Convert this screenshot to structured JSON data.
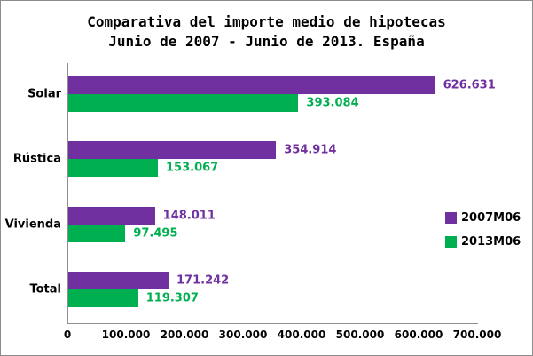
{
  "title": {
    "line1": "Comparativa del importe medio de hipotecas",
    "line2": "Junio de 2007 - Junio de 2013. España"
  },
  "chart_data": {
    "type": "bar",
    "orientation": "horizontal",
    "title": "Comparativa del importe medio de hipotecas Junio de 2007 - Junio de 2013. España",
    "categories": [
      "Solar",
      "Rústica",
      "Vivienda",
      "Total"
    ],
    "series": [
      {
        "name": "2007M06",
        "color": "#7030A0",
        "values": [
          626631,
          354914,
          148011,
          171242
        ],
        "labels": [
          "626.631",
          "354.914",
          "148.011",
          "171.242"
        ]
      },
      {
        "name": "2013M06",
        "color": "#00B050",
        "values": [
          393084,
          153067,
          97495,
          119307
        ],
        "labels": [
          "393.084",
          "153.067",
          "97.495",
          "119.307"
        ]
      }
    ],
    "xlim": [
      0,
      700000
    ],
    "x_ticks": [
      "0",
      "100.000",
      "200.000",
      "300.000",
      "400.000",
      "500.000",
      "600.000",
      "700.000"
    ],
    "x_tick_values": [
      0,
      100000,
      200000,
      300000,
      400000,
      500000,
      600000,
      700000
    ],
    "legend_position": "right",
    "grid": false
  }
}
